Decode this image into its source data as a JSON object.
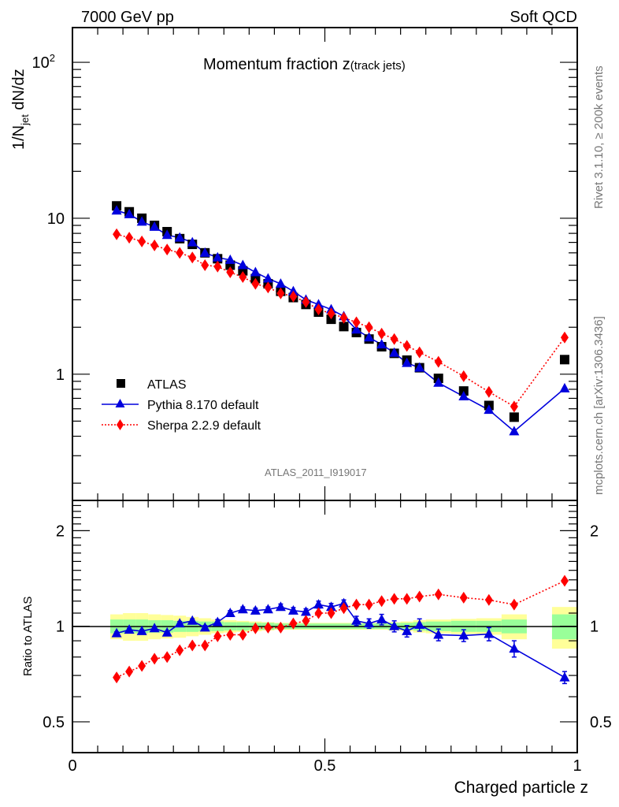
{
  "header": {
    "left": "7000 GeV pp",
    "right": "Soft QCD",
    "side_top": "Rivet 3.1.10, ≥ 200k events",
    "side_bottom": "mcplots.cern.ch [arXiv:1306.3436]",
    "analysis_id": "ATLAS_2011_I919017"
  },
  "chart_data": [
    {
      "type": "scatter",
      "panel": "main",
      "title": "Momentum fraction z",
      "title_suffix": "(track jets)",
      "ylabel": "1/N_jet dN/dz",
      "ylabel_main": "1/N",
      "ylabel_sub": "jet",
      "ylabel_rest": " dN/dz",
      "xlabel": "Charged particle z",
      "yscale": "log",
      "xlim": [
        0,
        1
      ],
      "ylim": [
        0.155,
        167
      ],
      "yticks": [
        {
          "value": 1,
          "label": "1"
        },
        {
          "value": 10,
          "label": "10"
        },
        {
          "value": 100,
          "label": "10",
          "sup": "2"
        }
      ],
      "xticks": [
        {
          "value": 0,
          "label": "0"
        },
        {
          "value": 0.5,
          "label": "0.5"
        },
        {
          "value": 1,
          "label": "1"
        }
      ],
      "legend_position": "lower-left",
      "x": [
        0.0875,
        0.1125,
        0.1375,
        0.1625,
        0.1875,
        0.2125,
        0.2375,
        0.2625,
        0.2875,
        0.3125,
        0.3375,
        0.3625,
        0.3875,
        0.4125,
        0.4375,
        0.4625,
        0.4875,
        0.5125,
        0.5375,
        0.5625,
        0.5875,
        0.6125,
        0.6375,
        0.6625,
        0.6875,
        0.725,
        0.775,
        0.825,
        0.875,
        0.975
      ],
      "series": [
        {
          "name": "ATLAS",
          "color": "#000000",
          "marker": "square",
          "line": "none",
          "values": [
            12.0,
            11.0,
            10.0,
            9.0,
            8.2,
            7.4,
            6.8,
            6.0,
            5.5,
            5.0,
            4.6,
            4.1,
            3.8,
            3.4,
            3.1,
            2.8,
            2.5,
            2.25,
            2.02,
            1.85,
            1.68,
            1.5,
            1.36,
            1.23,
            1.1,
            0.94,
            0.78,
            0.63,
            0.53,
            1.24
          ]
        },
        {
          "name": "Pythia 8.170 default",
          "color": "#0000dd",
          "marker": "triangle",
          "line": "solid",
          "values": [
            11.2,
            10.6,
            9.5,
            8.8,
            7.8,
            7.5,
            7.0,
            6.0,
            5.6,
            5.4,
            5.0,
            4.5,
            4.1,
            3.8,
            3.4,
            3.0,
            2.8,
            2.6,
            2.35,
            1.93,
            1.72,
            1.55,
            1.37,
            1.18,
            1.1,
            0.88,
            0.72,
            0.59,
            0.43,
            0.81
          ]
        },
        {
          "name": "Sherpa 2.2.9 default",
          "color": "#ff0000",
          "marker": "diamond",
          "line": "dotted",
          "values": [
            7.9,
            7.5,
            7.1,
            6.7,
            6.3,
            6.0,
            5.6,
            5.0,
            4.9,
            4.5,
            4.2,
            3.8,
            3.6,
            3.3,
            3.15,
            2.9,
            2.6,
            2.45,
            2.3,
            2.15,
            2.0,
            1.82,
            1.68,
            1.52,
            1.38,
            1.2,
            0.97,
            0.77,
            0.62,
            1.72
          ]
        }
      ]
    },
    {
      "type": "scatter",
      "panel": "ratio",
      "ylabel": "Ratio to ATLAS",
      "xlabel": "Charged particle z",
      "yscale": "log",
      "xlim": [
        0,
        1
      ],
      "ylim": [
        0.4,
        2.49
      ],
      "yticks": [
        {
          "value": 0.5,
          "label": "0.5"
        },
        {
          "value": 1,
          "label": "1"
        },
        {
          "value": 2,
          "label": "2"
        }
      ],
      "x": [
        0.0875,
        0.1125,
        0.1375,
        0.1625,
        0.1875,
        0.2125,
        0.2375,
        0.2625,
        0.2875,
        0.3125,
        0.3375,
        0.3625,
        0.3875,
        0.4125,
        0.4375,
        0.4625,
        0.4875,
        0.5125,
        0.5375,
        0.5625,
        0.5875,
        0.6125,
        0.6375,
        0.6625,
        0.6875,
        0.725,
        0.775,
        0.825,
        0.875,
        0.975
      ],
      "bins": [
        [
          0.075,
          0.1
        ],
        [
          0.1,
          0.125
        ],
        [
          0.125,
          0.15
        ],
        [
          0.15,
          0.175
        ],
        [
          0.175,
          0.2
        ],
        [
          0.2,
          0.225
        ],
        [
          0.225,
          0.25
        ],
        [
          0.25,
          0.275
        ],
        [
          0.275,
          0.3
        ],
        [
          0.3,
          0.325
        ],
        [
          0.325,
          0.35
        ],
        [
          0.35,
          0.375
        ],
        [
          0.375,
          0.4
        ],
        [
          0.4,
          0.425
        ],
        [
          0.425,
          0.45
        ],
        [
          0.45,
          0.475
        ],
        [
          0.475,
          0.5
        ],
        [
          0.5,
          0.525
        ],
        [
          0.525,
          0.55
        ],
        [
          0.55,
          0.575
        ],
        [
          0.575,
          0.6
        ],
        [
          0.6,
          0.625
        ],
        [
          0.625,
          0.65
        ],
        [
          0.65,
          0.675
        ],
        [
          0.675,
          0.7
        ],
        [
          0.7,
          0.75
        ],
        [
          0.75,
          0.8
        ],
        [
          0.8,
          0.85
        ],
        [
          0.85,
          0.9
        ],
        [
          0.95,
          1.0
        ]
      ],
      "band_stat": [
        0.05,
        0.05,
        0.05,
        0.045,
        0.045,
        0.04,
        0.04,
        0.035,
        0.035,
        0.03,
        0.03,
        0.025,
        0.025,
        0.02,
        0.02,
        0.02,
        0.02,
        0.02,
        0.02,
        0.02,
        0.02,
        0.02,
        0.025,
        0.025,
        0.03,
        0.035,
        0.04,
        0.04,
        0.05,
        0.09
      ],
      "band_total": [
        0.09,
        0.1,
        0.1,
        0.09,
        0.085,
        0.08,
        0.07,
        0.06,
        0.05,
        0.045,
        0.04,
        0.035,
        0.03,
        0.025,
        0.025,
        0.025,
        0.025,
        0.025,
        0.025,
        0.025,
        0.025,
        0.025,
        0.03,
        0.035,
        0.045,
        0.05,
        0.055,
        0.06,
        0.09,
        0.15
      ],
      "band_colors": {
        "stat": "#99ff99",
        "total": "#ffff99"
      },
      "series": [
        {
          "name": "Pythia 8.170 default",
          "color": "#0000dd",
          "marker": "triangle",
          "line": "solid",
          "values": [
            0.95,
            0.975,
            0.965,
            0.985,
            0.955,
            1.02,
            1.04,
            0.99,
            1.03,
            1.1,
            1.13,
            1.12,
            1.13,
            1.15,
            1.12,
            1.11,
            1.17,
            1.15,
            1.18,
            1.04,
            1.02,
            1.05,
            1.0,
            0.965,
            1.01,
            0.94,
            0.935,
            0.945,
            0.85,
            0.69
          ],
          "errors": [
            0.01,
            0.01,
            0.01,
            0.01,
            0.01,
            0.015,
            0.015,
            0.015,
            0.02,
            0.02,
            0.02,
            0.02,
            0.02,
            0.025,
            0.025,
            0.025,
            0.03,
            0.03,
            0.03,
            0.035,
            0.035,
            0.04,
            0.04,
            0.04,
            0.045,
            0.04,
            0.04,
            0.045,
            0.05,
            0.03
          ]
        },
        {
          "name": "Sherpa 2.2.9 default",
          "color": "#ff0000",
          "marker": "diamond",
          "line": "dotted",
          "values": [
            0.69,
            0.72,
            0.75,
            0.79,
            0.8,
            0.84,
            0.87,
            0.87,
            0.93,
            0.94,
            0.94,
            0.985,
            0.99,
            0.99,
            1.02,
            1.04,
            1.1,
            1.1,
            1.14,
            1.17,
            1.17,
            1.2,
            1.22,
            1.22,
            1.24,
            1.26,
            1.23,
            1.21,
            1.17,
            1.39
          ]
        }
      ]
    }
  ]
}
